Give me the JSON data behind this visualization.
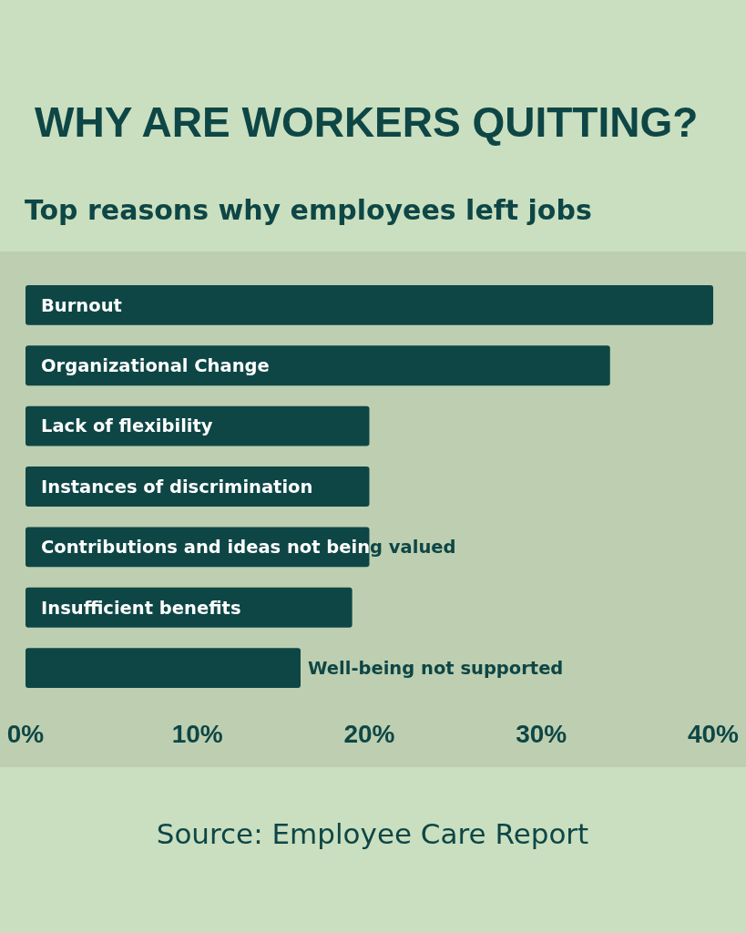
{
  "chart_data": {
    "type": "bar",
    "orientation": "horizontal",
    "title": "WHY ARE WORKERS QUITTING?",
    "subtitle": "Top reasons why employees left jobs",
    "categories": [
      "Burnout",
      "Organizational Change",
      "Lack of flexibility",
      "Instances of discrimination",
      "Contributions and ideas not being valued",
      "Insufficient benefits",
      "Well-being not supported"
    ],
    "values": [
      40,
      34,
      20,
      20,
      20,
      19,
      16
    ],
    "color": "#0e4646",
    "xlim": [
      0,
      40
    ],
    "xticks": [
      {
        "value": 0,
        "label": "0%"
      },
      {
        "value": 10,
        "label": "10%"
      },
      {
        "value": 20,
        "label": "20%"
      },
      {
        "value": 30,
        "label": "30%"
      },
      {
        "value": 40,
        "label": "40%"
      }
    ],
    "grid": false,
    "annotations": [
      "Source: Employee Care Report"
    ]
  }
}
